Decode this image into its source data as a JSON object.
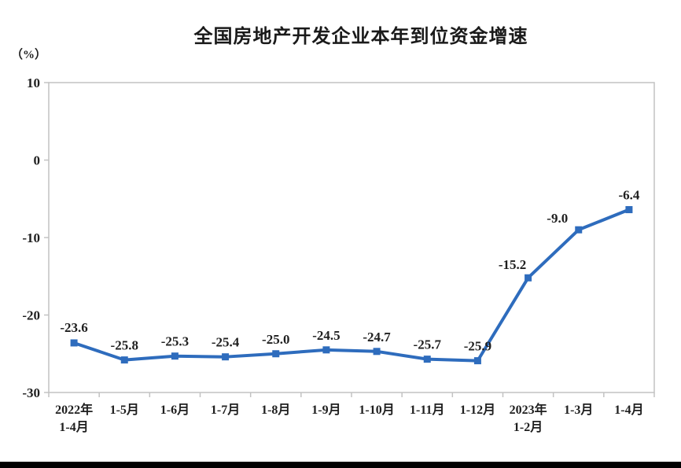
{
  "chart_data": {
    "type": "line",
    "title": "全国房地产开发企业本年到位资金增速",
    "unit": "（%）",
    "categories": [
      "2022年\n1-4月",
      "1-5月",
      "1-6月",
      "1-7月",
      "1-8月",
      "1-9月",
      "1-10月",
      "1-11月",
      "1-12月",
      "2023年\n1-2月",
      "1-3月",
      "1-4月"
    ],
    "values": [
      -23.6,
      -25.8,
      -25.3,
      -25.4,
      -25.0,
      -24.5,
      -24.7,
      -25.7,
      -25.9,
      -15.2,
      -9.0,
      -6.4
    ],
    "labels": [
      "-23.6",
      "-25.8",
      "-25.3",
      "-25.4",
      "-25.0",
      "-24.5",
      "-24.7",
      "-25.7",
      "-25.9",
      "-15.2",
      "-9.0",
      "-6.4"
    ],
    "ylim": [
      -30,
      10
    ],
    "yticks": [
      10,
      0,
      -10,
      -20,
      -30
    ],
    "grid": false,
    "legend": "none",
    "marker": "square",
    "colors": {
      "line": "#2E6CBD",
      "marker": "#2E6CBD",
      "text": "#1F1F1F",
      "plot_border": "#C2C2C2",
      "bottom_bar": "#000000"
    }
  }
}
